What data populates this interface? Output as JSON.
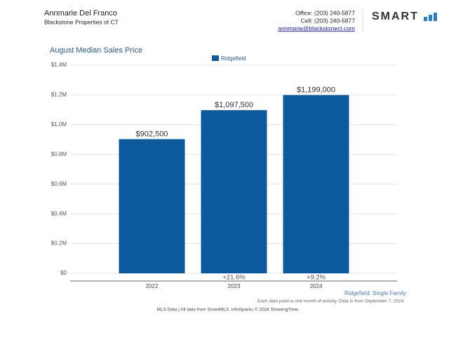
{
  "header": {
    "name": "Annmarie Del Franco",
    "company": "Blackstone Properties of CT",
    "office": "Office: (203) 240-5877",
    "cell": "Cell: (203) 240-5877",
    "email": "annmarie@blackstonect.com",
    "logo": "SMART"
  },
  "chart_data": {
    "type": "bar",
    "title": "August Median Sales Price",
    "categories": [
      "2022",
      "2023",
      "2024"
    ],
    "series": [
      {
        "name": "Ridgefield",
        "color": "#0b5aa0",
        "values": [
          902500,
          1097500,
          1199000
        ],
        "value_labels": [
          "$902,500",
          "$1,097,500",
          "$1,199,000"
        ]
      }
    ],
    "change_labels": [
      null,
      "+21.6%",
      "+9.2%"
    ],
    "ylim": [
      0,
      1400000
    ],
    "yticks": [
      {
        "value": 0,
        "label": "$0"
      },
      {
        "value": 200000,
        "label": "$0.2M"
      },
      {
        "value": 400000,
        "label": "$0.4M"
      },
      {
        "value": 600000,
        "label": "$0.6M"
      },
      {
        "value": 800000,
        "label": "$0.8M"
      },
      {
        "value": 1000000,
        "label": "$1.0M"
      },
      {
        "value": 1200000,
        "label": "$1.2M"
      },
      {
        "value": 1400000,
        "label": "$1.4M"
      }
    ],
    "grid": true,
    "subtitle": "Ridgefield: Single Family",
    "note": "Each data point is one month of activity. Data is from September 7, 2024."
  },
  "footer": "MLS Data | All data from SmartMLS. InfoSparks © 2024 ShowingTime."
}
